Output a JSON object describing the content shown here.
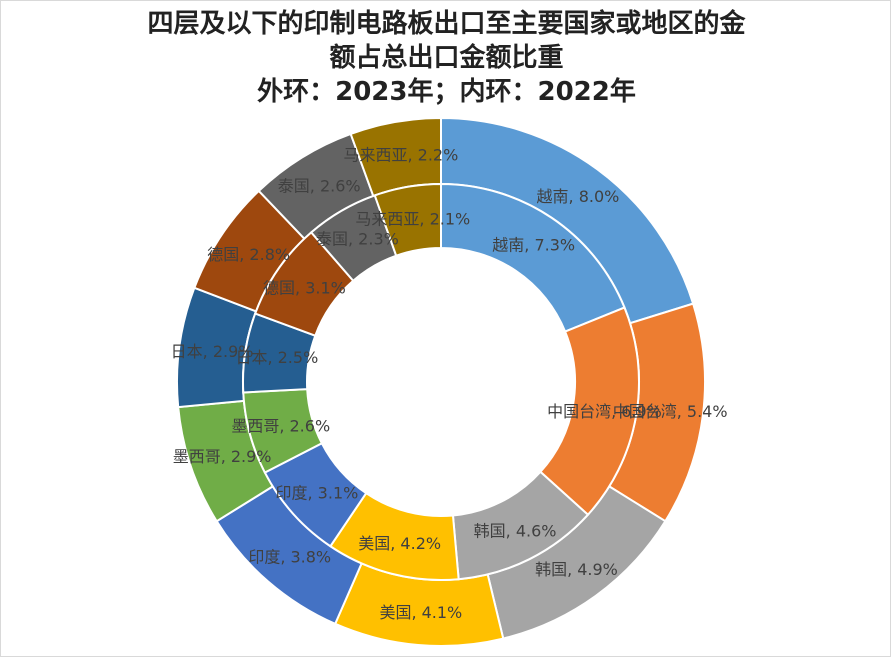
{
  "title_lines": [
    "四层及以下的印制电路板出口至主要国家或地区的金",
    "额占总出口金额比重",
    "外环：2023年；内环：2022年"
  ],
  "chart_data": {
    "type": "doughnut",
    "title": "四层及以下的印制电路板出口至主要国家或地区的金额占总出口金额比重 外环：2023年；内环：2022年",
    "categories": [
      "越南",
      "中国台湾",
      "韩国",
      "美国",
      "印度",
      "墨西哥",
      "日本",
      "德国",
      "泰国",
      "马来西亚"
    ],
    "colors": [
      "#5b9bd5",
      "#ed7d31",
      "#a5a5a5",
      "#ffc000",
      "#4472c4",
      "#70ad47",
      "#255e91",
      "#9e480e",
      "#636363",
      "#997300"
    ],
    "series": [
      {
        "ring": "outer",
        "year": "2023年",
        "values": [
          8.0,
          5.4,
          4.9,
          4.1,
          3.8,
          2.9,
          2.9,
          2.8,
          2.6,
          2.2
        ],
        "labels": [
          "越南, 8.0%",
          "中国台湾, 5.4%",
          "韩国, 4.9%",
          "美国, 4.1%",
          "印度, 3.8%",
          "墨西哥, 2.9%",
          "日本, 2.9%",
          "德国, 2.8%",
          "泰国, 2.6%",
          "马来西亚, 2.2%"
        ]
      },
      {
        "ring": "inner",
        "year": "2022年",
        "values": [
          7.3,
          6.9,
          4.6,
          4.2,
          3.1,
          2.6,
          2.5,
          3.1,
          2.3,
          2.1
        ],
        "labels": [
          "越南, 7.3%",
          "中国台湾, 6.9%",
          "韩国, 4.6%",
          "美国, 4.2%",
          "印度, 3.1%",
          "墨西哥, 2.6%",
          "日本, 2.5%",
          "德国, 3.1%",
          "泰国, 2.3%",
          "马来西亚, 2.1%"
        ]
      }
    ]
  }
}
